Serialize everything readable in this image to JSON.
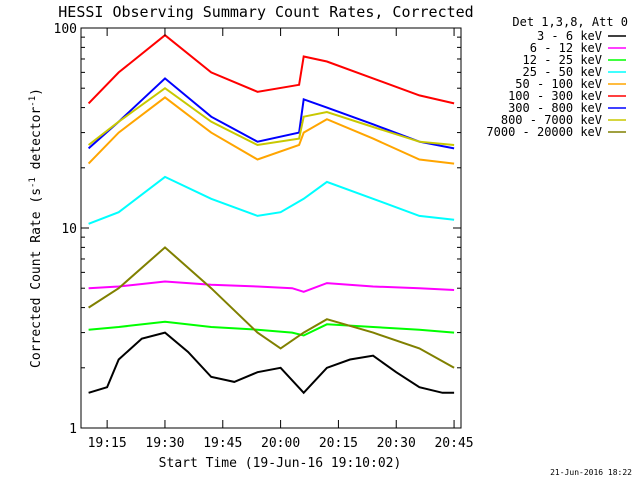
{
  "chart_data": {
    "type": "line",
    "title": "HESSI Observing Summary Count Rates, Corrected",
    "xlabel": "Start Time (19-Jun-16 19:10:02)",
    "ylabel": "Corrected Count Rate (s",
    "ylabel_sup": "-1",
    "ylabel_mid": " detector",
    "ylabel_end": ")",
    "yscale": "log",
    "ylim": [
      1,
      100
    ],
    "xlim_minutes": [
      19.137,
      20.78
    ],
    "x_ticks": [
      "19:15",
      "19:30",
      "19:45",
      "20:00",
      "20:15",
      "20:30",
      "20:45"
    ],
    "y_ticks": [
      "1",
      "10",
      "100"
    ],
    "legend_header": "Det 1,3,8, Att 0",
    "legend_position": "top-right",
    "footer_date": "21-Jun-2016 18:22",
    "series": [
      {
        "name": "3 - 6 keV",
        "color": "#000000",
        "x": [
          19.17,
          19.25,
          19.3,
          19.4,
          19.5,
          19.6,
          19.7,
          19.8,
          19.9,
          20.0,
          20.1,
          20.2,
          20.3,
          20.4,
          20.5,
          20.6,
          20.7,
          20.75
        ],
        "y": [
          1.5,
          1.6,
          2.2,
          2.8,
          3.0,
          2.4,
          1.8,
          1.7,
          1.9,
          2.0,
          1.5,
          2.0,
          2.2,
          2.3,
          1.9,
          1.6,
          1.5,
          1.5
        ]
      },
      {
        "name": "6 - 12 keV",
        "color": "#ff00ff",
        "x": [
          19.17,
          19.3,
          19.5,
          19.7,
          19.9,
          20.05,
          20.1,
          20.2,
          20.4,
          20.6,
          20.75
        ],
        "y": [
          5.0,
          5.1,
          5.4,
          5.2,
          5.1,
          5.0,
          4.8,
          5.3,
          5.1,
          5.0,
          4.9
        ]
      },
      {
        "name": "12 - 25 keV",
        "color": "#00ff00",
        "x": [
          19.17,
          19.3,
          19.5,
          19.7,
          19.9,
          20.05,
          20.1,
          20.2,
          20.4,
          20.6,
          20.75
        ],
        "y": [
          3.1,
          3.2,
          3.4,
          3.2,
          3.1,
          3.0,
          2.9,
          3.3,
          3.2,
          3.1,
          3.0
        ]
      },
      {
        "name": "25 - 50 keV",
        "color": "#00ffff",
        "x": [
          19.17,
          19.3,
          19.5,
          19.7,
          19.9,
          20.0,
          20.1,
          20.2,
          20.4,
          20.6,
          20.75
        ],
        "y": [
          10.5,
          12.0,
          18.0,
          14.0,
          11.5,
          12.0,
          14.0,
          17.0,
          14.0,
          11.5,
          11.0
        ]
      },
      {
        "name": "50 - 100 keV",
        "color": "#ffa500",
        "x": [
          19.17,
          19.3,
          19.5,
          19.7,
          19.9,
          20.08,
          20.1,
          20.2,
          20.4,
          20.6,
          20.75
        ],
        "y": [
          21,
          30,
          45,
          30,
          22,
          26,
          30,
          35,
          28,
          22,
          21
        ]
      },
      {
        "name": "100 - 300 keV",
        "color": "#ff0000",
        "x": [
          19.17,
          19.3,
          19.5,
          19.7,
          19.9,
          20.08,
          20.1,
          20.2,
          20.4,
          20.6,
          20.75
        ],
        "y": [
          42,
          60,
          92,
          60,
          48,
          52,
          72,
          68,
          56,
          46,
          42
        ]
      },
      {
        "name": "300 - 800 keV",
        "color": "#0000ff",
        "x": [
          19.17,
          19.3,
          19.5,
          19.7,
          19.9,
          20.08,
          20.1,
          20.2,
          20.4,
          20.6,
          20.75
        ],
        "y": [
          25,
          34,
          56,
          36,
          27,
          30,
          44,
          40,
          33,
          27,
          25
        ]
      },
      {
        "name": "800 - 7000 keV",
        "color": "#c8c800",
        "x": [
          19.17,
          19.3,
          19.5,
          19.7,
          19.9,
          20.08,
          20.1,
          20.2,
          20.4,
          20.6,
          20.75
        ],
        "y": [
          26,
          34,
          50,
          34,
          26,
          28,
          36,
          38,
          32,
          27,
          26
        ]
      },
      {
        "name": "7000 - 20000 keV",
        "color": "#808000",
        "x": [
          19.17,
          19.3,
          19.5,
          19.7,
          19.9,
          20.0,
          20.1,
          20.2,
          20.4,
          20.6,
          20.75
        ],
        "y": [
          4.0,
          5.0,
          8.0,
          5.0,
          3.0,
          2.5,
          3.0,
          3.5,
          3.0,
          2.5,
          2.0
        ]
      }
    ]
  }
}
